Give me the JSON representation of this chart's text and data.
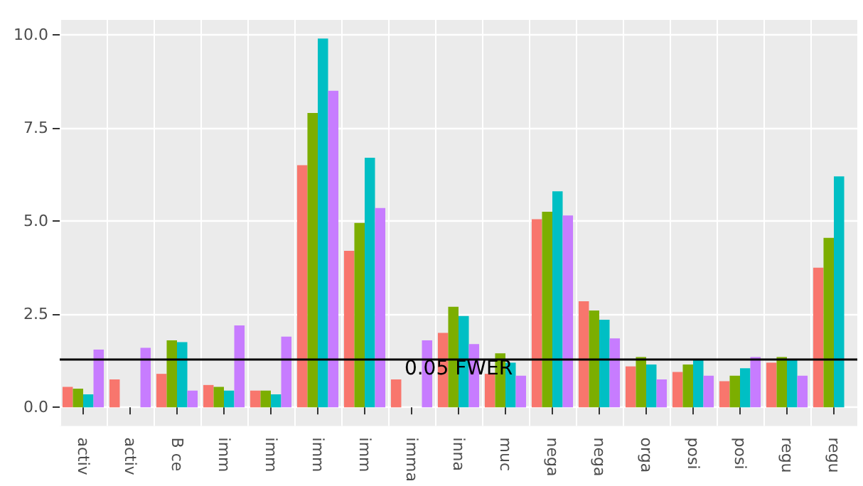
{
  "chart_data": {
    "type": "bar",
    "categories": [
      "activ",
      "activ",
      "B ce",
      "imm",
      "imm",
      "imm",
      "imm",
      "imma",
      "inna",
      "muc",
      "nega",
      "nega",
      "orga",
      "posi",
      "posi",
      "regu",
      "regu"
    ],
    "series": [
      {
        "color": "#f8766d",
        "values": [
          0.55,
          0.75,
          0.9,
          0.6,
          0.45,
          6.5,
          4.2,
          0.75,
          2.0,
          0.9,
          5.05,
          2.85,
          1.1,
          0.95,
          0.7,
          1.2,
          3.75
        ]
      },
      {
        "color": "#7cae00",
        "values": [
          0.5,
          null,
          1.8,
          0.55,
          0.45,
          7.9,
          4.95,
          null,
          2.7,
          1.45,
          5.25,
          2.6,
          1.35,
          1.15,
          0.85,
          1.35,
          4.55
        ]
      },
      {
        "color": "#00bfc4",
        "values": [
          0.35,
          null,
          1.75,
          0.45,
          0.35,
          9.9,
          6.7,
          null,
          2.45,
          1.2,
          5.8,
          2.35,
          1.15,
          1.3,
          1.05,
          1.3,
          6.2
        ]
      },
      {
        "color": "#c77cff",
        "values": [
          1.55,
          1.6,
          0.45,
          2.2,
          1.9,
          8.5,
          5.35,
          1.8,
          1.7,
          0.85,
          5.15,
          1.85,
          0.75,
          0.85,
          1.35,
          0.85,
          null
        ]
      }
    ],
    "ylim": [
      -0.5,
      10.4
    ],
    "yticks": [
      {
        "value": 0,
        "label": "0.0"
      },
      {
        "value": 2.5,
        "label": "2.5"
      },
      {
        "value": 5,
        "label": "5.0"
      },
      {
        "value": 7.5,
        "label": "7.5"
      },
      {
        "value": 10,
        "label": "10.0"
      }
    ],
    "grid": true,
    "ref_lines": [
      {
        "axis": "y",
        "value": 1.3,
        "label": "0.05 FWER",
        "color": "#000000"
      }
    ]
  }
}
